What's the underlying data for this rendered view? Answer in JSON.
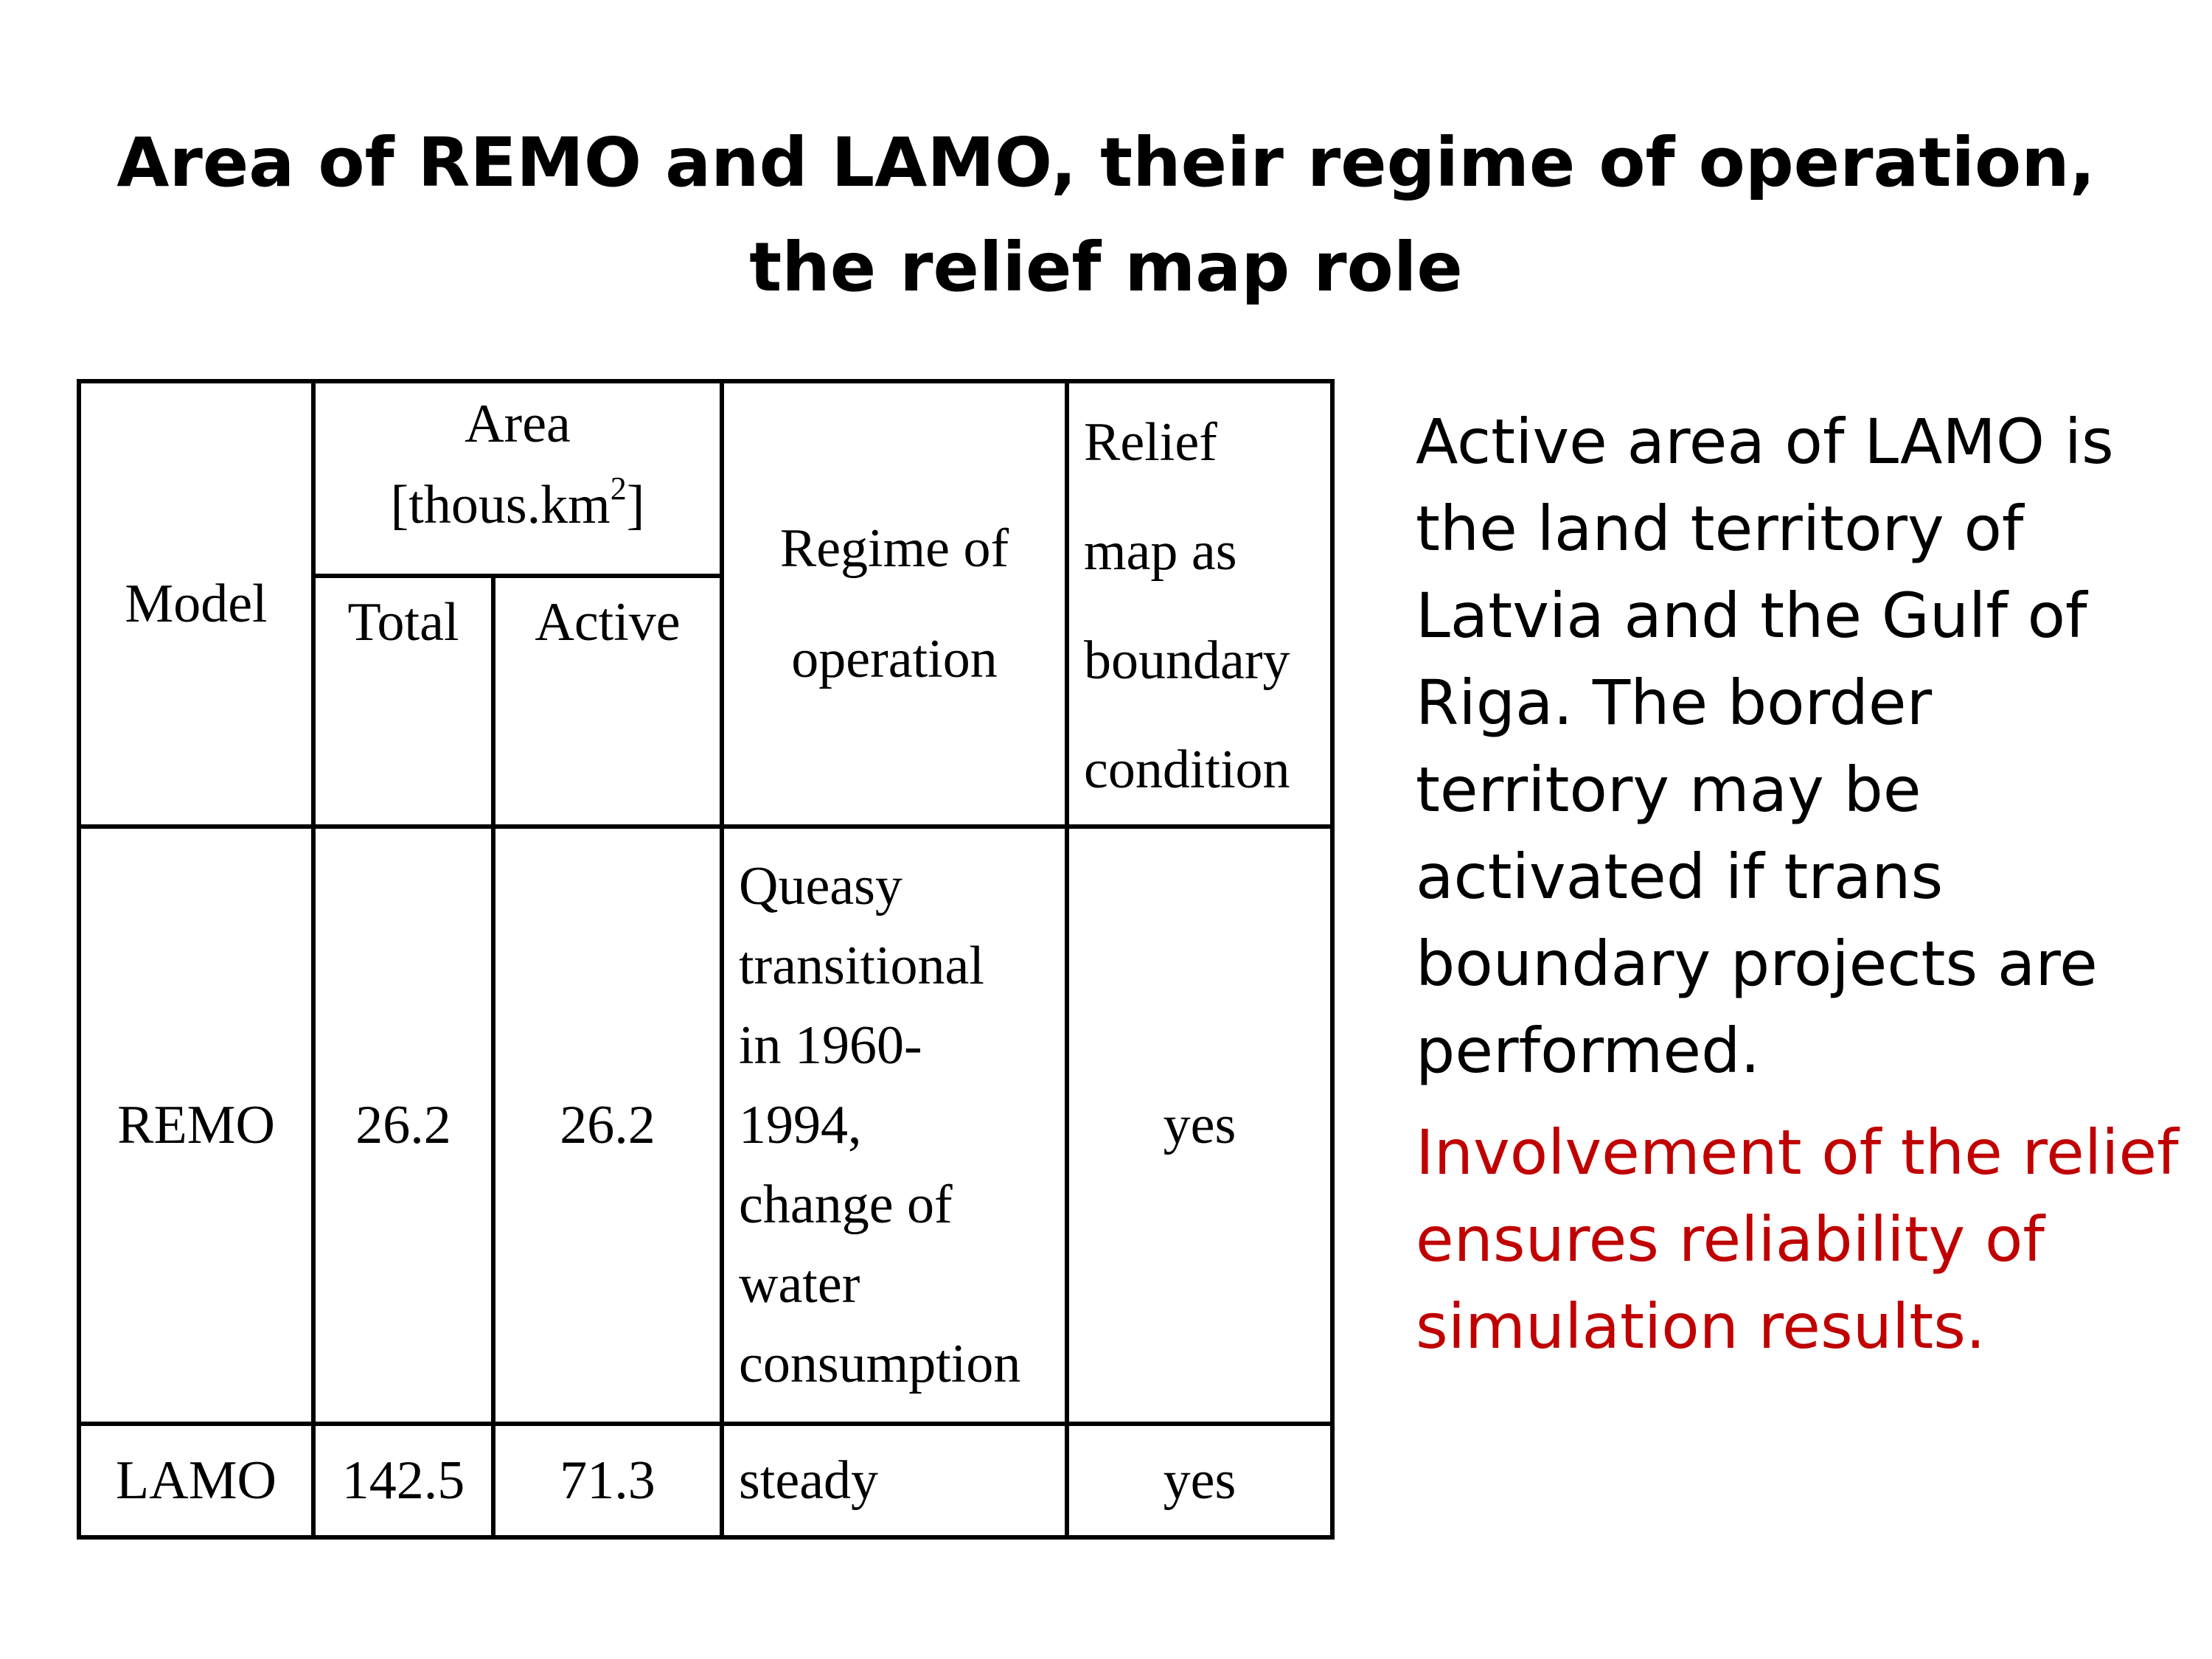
{
  "title": {
    "line1": "Area of REMO and LAMO, their regime of operation,",
    "line2": "the relief map role"
  },
  "table": {
    "headers": {
      "model": "Model",
      "area_line1": "Area",
      "area_line2": "[thous.km",
      "area_sup": "2",
      "area_line2_end": "]",
      "total": "Total",
      "active": "Active",
      "regime_line1": "Regime of",
      "regime_line2": "operation",
      "relief_line1": "Relief",
      "relief_line2": "map as",
      "relief_line3": "boundary",
      "relief_line4": "condition"
    },
    "rows": [
      {
        "model": "REMO",
        "total": "26.2",
        "active": "26.2",
        "regime": [
          "Queasy",
          "transitional",
          "in 1960-",
          "1994,",
          "change of",
          "water",
          "consumption"
        ],
        "relief": "yes"
      },
      {
        "model": "LAMO",
        "total": "142.5",
        "active": "71.3",
        "regime": [
          "steady"
        ],
        "relief": "yes"
      }
    ]
  },
  "side": {
    "black_text": "Active area of LAMO is the land territory of Latvia and the Gulf of Riga. The border territory may be activated if trans boundary projects are performed.",
    "red_text": "Involvement of the relief ensures reliability of simulation results.",
    "red_color": "#c00000"
  }
}
